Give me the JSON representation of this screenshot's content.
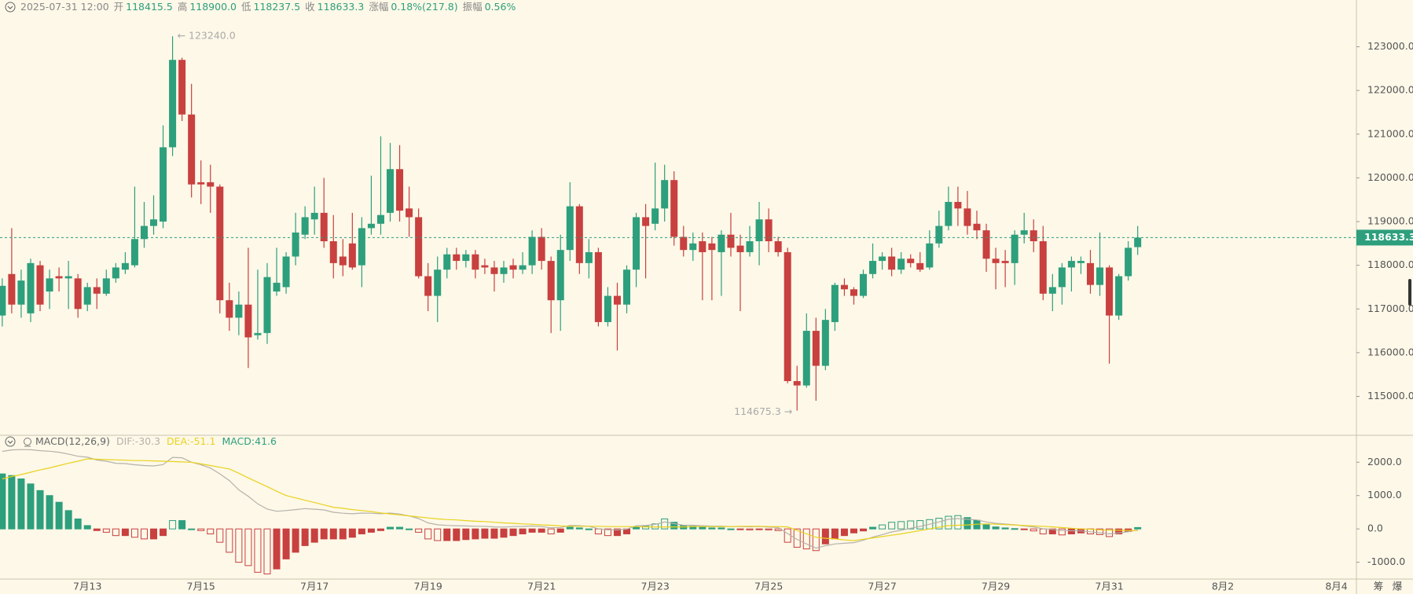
{
  "chart_data": [
    {
      "type": "candlestick",
      "header": {
        "time": "2025-07-31 12:00",
        "fields": [
          {
            "label": "开",
            "value": "118415.5"
          },
          {
            "label": "高",
            "value": "118900.0"
          },
          {
            "label": "低",
            "value": "118237.5"
          },
          {
            "label": "收",
            "value": "118633.3"
          },
          {
            "label": "涨幅",
            "value": "0.18%(217.8)"
          },
          {
            "label": "振幅",
            "value": "0.56%"
          }
        ]
      },
      "up_color": "#2d9f7c",
      "down_color": "#c8403f",
      "label_color": "#888888",
      "value_color": "#2d9f7c",
      "ylim": [
        114110,
        124070
      ],
      "yticks": [
        {
          "value": 115000,
          "label": "115000.0"
        },
        {
          "value": 116000,
          "label": "116000.0"
        },
        {
          "value": 117000,
          "label": "117000.0"
        },
        {
          "value": 118000,
          "label": "118000.0"
        },
        {
          "value": 119000,
          "label": "119000.0"
        },
        {
          "value": 120000,
          "label": "120000.0"
        },
        {
          "value": 121000,
          "label": "121000.0"
        },
        {
          "value": 122000,
          "label": "122000.0"
        },
        {
          "value": 123000,
          "label": "123000.0"
        }
      ],
      "last_label": "118633.3",
      "high_label": "← 123240.0",
      "low_label": "114675.3 →",
      "ohlc": [
        [
          116850,
          117700,
          116600,
          117530
        ],
        [
          117800,
          118850,
          116900,
          117100
        ],
        [
          117100,
          117900,
          116800,
          117650
        ],
        [
          116900,
          118150,
          116700,
          118050
        ],
        [
          118000,
          118100,
          116950,
          117100
        ],
        [
          117400,
          117900,
          117000,
          117700
        ],
        [
          117750,
          117950,
          117400,
          117700
        ],
        [
          117700,
          118100,
          117000,
          117750
        ],
        [
          117700,
          117800,
          116800,
          117000
        ],
        [
          117100,
          117600,
          116950,
          117500
        ],
        [
          117500,
          117700,
          117000,
          117350
        ],
        [
          117350,
          117900,
          117300,
          117700
        ],
        [
          117700,
          118050,
          117600,
          117950
        ],
        [
          117900,
          118300,
          117800,
          118050
        ],
        [
          118000,
          119800,
          117950,
          118600
        ],
        [
          118600,
          119450,
          118400,
          118900
        ],
        [
          118900,
          119600,
          118700,
          119050
        ],
        [
          119000,
          121200,
          118850,
          120700
        ],
        [
          120700,
          123240,
          120500,
          122700
        ],
        [
          122700,
          122750,
          121300,
          121450
        ],
        [
          121450,
          122150,
          119550,
          119850
        ],
        [
          119900,
          120400,
          119400,
          119850
        ],
        [
          119900,
          120300,
          119200,
          119800
        ],
        [
          119800,
          119850,
          116900,
          117200
        ],
        [
          117200,
          117600,
          116500,
          116800
        ],
        [
          116800,
          117400,
          116400,
          117100
        ],
        [
          117100,
          118400,
          115650,
          116350
        ],
        [
          116400,
          117900,
          116300,
          116450
        ],
        [
          116450,
          118050,
          116200,
          117730
        ],
        [
          117400,
          118400,
          117300,
          117600
        ],
        [
          117500,
          118300,
          117350,
          118200
        ],
        [
          118200,
          119200,
          118000,
          118750
        ],
        [
          118700,
          119350,
          118600,
          119100
        ],
        [
          119050,
          119800,
          118700,
          119200
        ],
        [
          119200,
          120000,
          118400,
          118550
        ],
        [
          118550,
          119150,
          117700,
          118050
        ],
        [
          118200,
          118600,
          117750,
          118000
        ],
        [
          118500,
          119200,
          117900,
          117950
        ],
        [
          118000,
          119100,
          117500,
          118850
        ],
        [
          118850,
          120050,
          118700,
          118950
        ],
        [
          118950,
          120950,
          118700,
          119150
        ],
        [
          119200,
          120800,
          119000,
          120200
        ],
        [
          120200,
          120750,
          119000,
          119250
        ],
        [
          119300,
          119800,
          118650,
          119100
        ],
        [
          119100,
          119300,
          117700,
          117750
        ],
        [
          117750,
          118050,
          116950,
          117300
        ],
        [
          117300,
          118200,
          116700,
          117900
        ],
        [
          117900,
          118400,
          117700,
          118250
        ],
        [
          118250,
          118400,
          117900,
          118100
        ],
        [
          118100,
          118350,
          117950,
          118250
        ],
        [
          118250,
          118350,
          117700,
          117900
        ],
        [
          118000,
          118150,
          117800,
          117950
        ],
        [
          117950,
          118100,
          117400,
          117800
        ],
        [
          117800,
          118100,
          117600,
          117950
        ],
        [
          118000,
          118150,
          117700,
          117900
        ],
        [
          117900,
          118300,
          117800,
          118000
        ],
        [
          118000,
          118800,
          117800,
          118650
        ],
        [
          118650,
          118850,
          117900,
          118100
        ],
        [
          118100,
          118200,
          116450,
          117200
        ],
        [
          117200,
          118700,
          116500,
          118350
        ],
        [
          118350,
          119900,
          118100,
          119350
        ],
        [
          119350,
          119400,
          117800,
          118050
        ],
        [
          118050,
          118600,
          117700,
          118300
        ],
        [
          118300,
          118400,
          116600,
          116700
        ],
        [
          116700,
          117500,
          116600,
          117300
        ],
        [
          117300,
          117600,
          116050,
          117100
        ],
        [
          117100,
          118000,
          116900,
          117900
        ],
        [
          117900,
          119200,
          117500,
          119100
        ],
        [
          119100,
          119400,
          117700,
          118900
        ],
        [
          118950,
          120350,
          118800,
          119300
        ],
        [
          119300,
          120300,
          119000,
          119950
        ],
        [
          119950,
          120150,
          118450,
          118650
        ],
        [
          118650,
          118900,
          118200,
          118350
        ],
        [
          118350,
          118750,
          118100,
          118500
        ],
        [
          118550,
          118750,
          117200,
          118300
        ],
        [
          118500,
          118650,
          117200,
          118350
        ],
        [
          118300,
          118800,
          117300,
          118700
        ],
        [
          118700,
          119200,
          118200,
          118400
        ],
        [
          118450,
          118700,
          116950,
          118300
        ],
        [
          118300,
          118900,
          118200,
          118550
        ],
        [
          118550,
          119450,
          118000,
          119050
        ],
        [
          119050,
          119300,
          118300,
          118550
        ],
        [
          118550,
          118650,
          118200,
          118300
        ],
        [
          118300,
          118400,
          115300,
          115350
        ],
        [
          115350,
          115700,
          114675.3,
          115250
        ],
        [
          115250,
          116900,
          115200,
          116500
        ],
        [
          116500,
          116800,
          114900,
          115700
        ],
        [
          115700,
          117000,
          115600,
          116750
        ],
        [
          116700,
          117600,
          116500,
          117550
        ],
        [
          117550,
          117700,
          117300,
          117450
        ],
        [
          117450,
          117500,
          117100,
          117300
        ],
        [
          117300,
          117900,
          117250,
          117800
        ],
        [
          117800,
          118500,
          117700,
          118100
        ],
        [
          118100,
          118300,
          117900,
          118200
        ],
        [
          118200,
          118400,
          117750,
          117900
        ],
        [
          117900,
          118300,
          117800,
          118150
        ],
        [
          118150,
          118250,
          117950,
          118050
        ],
        [
          118050,
          118300,
          117850,
          117900
        ],
        [
          117950,
          118800,
          117900,
          118500
        ],
        [
          118500,
          119250,
          118400,
          118900
        ],
        [
          118900,
          119800,
          118800,
          119450
        ],
        [
          119450,
          119800,
          118900,
          119300
        ],
        [
          119300,
          119700,
          118700,
          118900
        ],
        [
          118950,
          119250,
          118600,
          118800
        ],
        [
          118800,
          118950,
          117850,
          118150
        ],
        [
          118150,
          118400,
          117450,
          118050
        ],
        [
          118100,
          118350,
          117500,
          118050
        ],
        [
          118050,
          118800,
          117550,
          118700
        ],
        [
          118700,
          119200,
          118500,
          118800
        ],
        [
          118800,
          119050,
          118300,
          118550
        ],
        [
          118550,
          118900,
          117200,
          117350
        ],
        [
          117350,
          117800,
          116950,
          117500
        ],
        [
          117500,
          118050,
          117100,
          117950
        ],
        [
          117950,
          118200,
          117400,
          118100
        ],
        [
          118050,
          118200,
          117800,
          118100
        ],
        [
          118050,
          118350,
          117350,
          117550
        ],
        [
          117550,
          118750,
          117300,
          117950
        ],
        [
          117950,
          118000,
          115750,
          116850
        ],
        [
          116850,
          117800,
          116750,
          117750
        ],
        [
          117750,
          118550,
          117650,
          118400
        ],
        [
          118415.5,
          118900,
          118237.5,
          118633.3
        ]
      ]
    },
    {
      "type": "macd",
      "indicator": "MACD(12,26,9)",
      "up_color": "#2d9f7c",
      "down_color": "#c8403f",
      "ylim": [
        -1504,
        2808
      ],
      "yticks": [
        {
          "value": 2000,
          "label": "2000.0"
        },
        {
          "value": 1000,
          "label": "1000.0"
        },
        {
          "value": 0,
          "label": "0.0"
        },
        {
          "value": -1000,
          "label": "-1000.0"
        }
      ],
      "xlabels": [
        "7月13",
        "7月15",
        "7月17",
        "7月19",
        "7月21",
        "7月23",
        "7月25",
        "7月27",
        "7月29",
        "7月31",
        "8月2",
        "8月4"
      ],
      "toolbar": [
        "筹",
        "爆"
      ],
      "histogram_label": "MACD:41.6",
      "histogram": [
        1650,
        1600,
        1500,
        1350,
        1150,
        1000,
        800,
        550,
        300,
        100,
        -50,
        -100,
        -200,
        -200,
        -250,
        -300,
        -300,
        -200,
        250,
        250,
        0,
        -50,
        -150,
        -400,
        -700,
        -1000,
        -1100,
        -1300,
        -1350,
        -1200,
        -900,
        -700,
        -500,
        -400,
        -300,
        -300,
        -300,
        -250,
        -150,
        -100,
        -50,
        50,
        50,
        0,
        -100,
        -300,
        -350,
        -350,
        -350,
        -320,
        -300,
        -280,
        -280,
        -250,
        -200,
        -150,
        -100,
        -100,
        -150,
        -100,
        50,
        30,
        0,
        -150,
        -200,
        -200,
        -150,
        50,
        80,
        150,
        300,
        200,
        100,
        80,
        50,
        30,
        30,
        0,
        -20,
        -30,
        -10,
        -30,
        -50,
        -400,
        -550,
        -600,
        -650,
        -450,
        -300,
        -200,
        -120,
        -60,
        50,
        120,
        200,
        220,
        240,
        250,
        280,
        320,
        380,
        400,
        340,
        260,
        120,
        60,
        30,
        10,
        -20,
        -60,
        -150,
        -150,
        -180,
        -150,
        -120,
        -150,
        -170,
        -230,
        -150,
        -80,
        41.6
      ],
      "lines": [
        {
          "label": "DIF:-30.3",
          "color": "#b5b2aa",
          "values": [
            2325,
            2370,
            2380,
            2375,
            2345,
            2330,
            2300,
            2245,
            2180,
            2150,
            2065,
            2030,
            1970,
            1960,
            1925,
            1900,
            1890,
            1930,
            2145,
            2135,
            2000,
            1925,
            1825,
            1650,
            1450,
            1170,
            980,
            750,
            595,
            530,
            550,
            580,
            610,
            590,
            570,
            500,
            470,
            455,
            475,
            470,
            455,
            475,
            445,
            390,
            310,
            180,
            125,
            105,
            95,
            90,
            80,
            80,
            60,
            55,
            70,
            75,
            90,
            70,
            35,
            40,
            105,
            95,
            80,
            5,
            -30,
            -30,
            -5,
            95,
            100,
            135,
            210,
            160,
            110,
            110,
            95,
            85,
            85,
            70,
            70,
            65,
            75,
            55,
            45,
            -140,
            -315,
            -450,
            -575,
            -505,
            -450,
            -430,
            -410,
            -340,
            -245,
            -170,
            -90,
            -40,
            20,
            75,
            140,
            210,
            290,
            310,
            290,
            270,
            210,
            170,
            145,
            125,
            90,
            60,
            5,
            -15,
            -50,
            -55,
            -60,
            -85,
            -115,
            -150,
            -115,
            -85,
            -30.3
          ]
        },
        {
          "label": "DEA:-51.1",
          "color": "#e9d21c",
          "values": [
            1500,
            1570,
            1630,
            1700,
            1770,
            1830,
            1900,
            1970,
            2030,
            2100,
            2090,
            2080,
            2070,
            2060,
            2050,
            2050,
            2040,
            2030,
            2020,
            2010,
            2000,
            1950,
            1900,
            1850,
            1800,
            1670,
            1530,
            1400,
            1270,
            1130,
            1000,
            930,
            860,
            790,
            720,
            650,
            620,
            580,
            550,
            520,
            480,
            450,
            420,
            390,
            360,
            330,
            300,
            280,
            270,
            250,
            230,
            220,
            200,
            180,
            170,
            150,
            140,
            120,
            110,
            90,
            80,
            80,
            80,
            80,
            70,
            70,
            70,
            70,
            60,
            60,
            60,
            60,
            60,
            70,
            70,
            70,
            70,
            70,
            80,
            80,
            80,
            70,
            70,
            60,
            -40,
            -150,
            -250,
            -280,
            -300,
            -330,
            -350,
            -310,
            -270,
            -230,
            -190,
            -150,
            -100,
            -50,
            0,
            50,
            100,
            110,
            120,
            140,
            150,
            140,
            130,
            120,
            100,
            90,
            80,
            60,
            40,
            20,
            0,
            -10,
            -30,
            -35,
            -40,
            -45,
            -51.1
          ]
        }
      ]
    }
  ]
}
